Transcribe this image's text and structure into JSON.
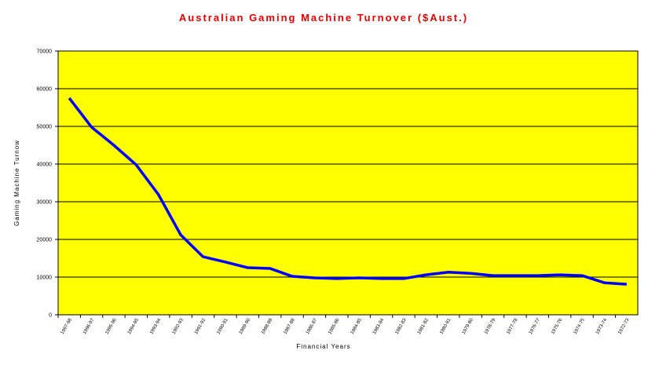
{
  "chart_data": {
    "type": "line",
    "title": "Australian Gaming Machine Turnover ($Aust.)",
    "x_label": "Financial Years",
    "y_label": "Gaming Machine Turnow",
    "categories": [
      "1997-98",
      "1996-97",
      "1995-96",
      "1994-95",
      "1993-94",
      "1992-93",
      "1991-92",
      "1990-91",
      "1989-90",
      "1988-89",
      "1987-88",
      "1986-87",
      "1985-86",
      "1984-85",
      "1983-84",
      "1982-83",
      "1981-82",
      "1980-81",
      "1979-80",
      "1978-79",
      "1977-78",
      "1976-77",
      "1975-76",
      "1974-75",
      "1973-74",
      "1972-73"
    ],
    "values": [
      57500,
      49800,
      45000,
      39800,
      31900,
      21200,
      15400,
      14000,
      12500,
      12300,
      10200,
      9800,
      9600,
      9800,
      9600,
      9600,
      10600,
      11300,
      11000,
      10400,
      10400,
      10400,
      10600,
      10400,
      8500,
      8100
    ],
    "color": "#0000ff",
    "background": "#ffff00",
    "ylim": [
      0,
      70000
    ],
    "yticks": [
      0,
      10000,
      20000,
      30000,
      40000,
      50000,
      60000,
      70000
    ],
    "grid": true
  }
}
